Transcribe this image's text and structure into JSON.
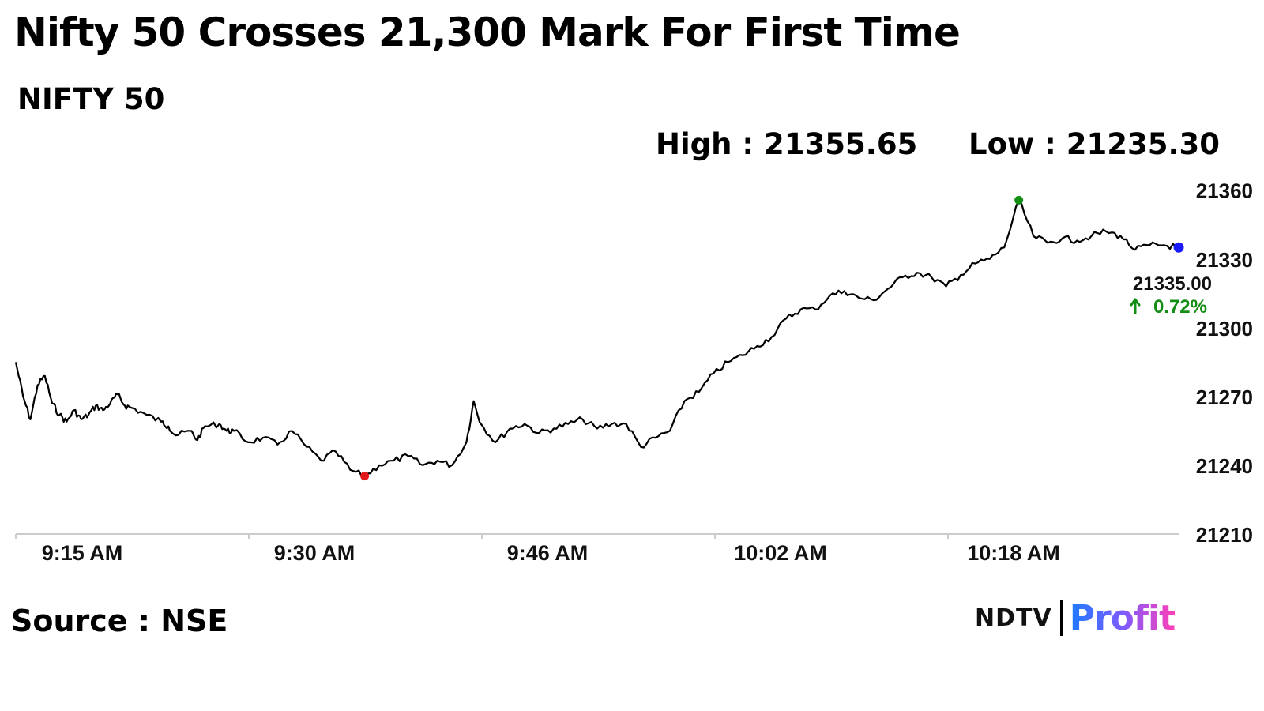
{
  "header": {
    "title": "Nifty 50 Crosses 21,300 Mark For First Time",
    "index_name": "NIFTY 50",
    "high_label": "High : 21355.65",
    "low_label": "Low : 21235.30"
  },
  "footer": {
    "source": "Source : NSE",
    "logo_ndtv": "NDTV",
    "logo_profit": "Profit"
  },
  "colors": {
    "line": "#000000",
    "high_marker": "#138d13",
    "low_marker": "#e0191b",
    "last_marker": "#1a1aff",
    "change_positive": "#138d13",
    "axis": "#cccccc"
  },
  "chart_data": {
    "type": "line",
    "title": "NIFTY 50",
    "xlabel": "",
    "ylabel": "",
    "ylim": [
      21210,
      21363
    ],
    "yticks": [
      21210,
      21240,
      21270,
      21300,
      21330,
      21360
    ],
    "xticks": [
      "9:15 AM",
      "9:30 AM",
      "9:46 AM",
      "10:02 AM",
      "10:18 AM"
    ],
    "x_time_range": [
      "09:15",
      "10:35"
    ],
    "high": {
      "time": "10:24",
      "value": 21355.65
    },
    "low": {
      "time": "09:39",
      "value": 21235.3
    },
    "last": {
      "time": "10:35",
      "value": 21335.0,
      "label": "21335.00",
      "change": "0.72%",
      "direction": "up"
    },
    "grid": false,
    "series": [
      {
        "values": [
          [
            "09:15",
            21285
          ],
          [
            "09:15.5",
            21270
          ],
          [
            "09:16",
            21260
          ],
          [
            "09:16.5",
            21275
          ],
          [
            "09:17",
            21279
          ],
          [
            "09:17.5",
            21267
          ],
          [
            "09:18",
            21262
          ],
          [
            "09:18.5",
            21259
          ],
          [
            "09:19",
            21264
          ],
          [
            "09:19.5",
            21260
          ],
          [
            "09:20",
            21262
          ],
          [
            "09:20.5",
            21266
          ],
          [
            "09:21",
            21264
          ],
          [
            "09:21.5",
            21267
          ],
          [
            "09:22",
            21271
          ],
          [
            "09:22.5",
            21266
          ],
          [
            "09:23",
            21265
          ],
          [
            "09:24",
            21262
          ],
          [
            "09:25",
            21259
          ],
          [
            "09:25.5",
            21257
          ],
          [
            "09:26",
            21253
          ],
          [
            "09:27",
            21255
          ],
          [
            "09:27.5",
            21251
          ],
          [
            "09:28",
            21257
          ],
          [
            "09:29",
            21258
          ],
          [
            "09:29.5",
            21255
          ],
          [
            "09:30",
            21255
          ],
          [
            "09:31",
            21250
          ],
          [
            "09:32",
            21252
          ],
          [
            "09:33",
            21249
          ],
          [
            "09:34",
            21255
          ],
          [
            "09:35",
            21248
          ],
          [
            "09:36",
            21242
          ],
          [
            "09:37",
            21246
          ],
          [
            "09:38",
            21238
          ],
          [
            "09:39",
            21235.3
          ],
          [
            "09:40",
            21240
          ],
          [
            "09:41",
            21242
          ],
          [
            "09:42",
            21244
          ],
          [
            "09:43",
            21240
          ],
          [
            "09:44",
            21242
          ],
          [
            "09:45",
            21240
          ],
          [
            "09:46",
            21250
          ],
          [
            "09:46.5",
            21268
          ],
          [
            "09:47",
            21258
          ],
          [
            "09:48",
            21250
          ],
          [
            "09:49",
            21256
          ],
          [
            "09:50",
            21258
          ],
          [
            "09:51",
            21254
          ],
          [
            "09:52",
            21256
          ],
          [
            "09:53",
            21258
          ],
          [
            "09:54",
            21260
          ],
          [
            "09:55",
            21256
          ],
          [
            "09:56",
            21258
          ],
          [
            "09:57",
            21258
          ],
          [
            "09:58",
            21248
          ],
          [
            "09:59",
            21252
          ],
          [
            "10:00",
            21255
          ],
          [
            "10:01",
            21268
          ],
          [
            "10:02",
            21272
          ],
          [
            "10:03",
            21280
          ],
          [
            "10:04",
            21285
          ],
          [
            "10:05",
            21288
          ],
          [
            "10:06",
            21292
          ],
          [
            "10:07",
            21296
          ],
          [
            "10:08",
            21304
          ],
          [
            "10:09",
            21308
          ],
          [
            "10:10",
            21308
          ],
          [
            "10:11",
            21314
          ],
          [
            "10:12",
            21316
          ],
          [
            "10:13",
            21313
          ],
          [
            "10:14",
            21312
          ],
          [
            "10:15",
            21317
          ],
          [
            "10:16",
            21322
          ],
          [
            "10:17",
            21324
          ],
          [
            "10:18",
            21322
          ],
          [
            "10:19",
            21318
          ],
          [
            "10:20",
            21323
          ],
          [
            "10:21",
            21328
          ],
          [
            "10:22",
            21330
          ],
          [
            "10:23",
            21335
          ],
          [
            "10:24",
            21355.65
          ],
          [
            "10:25",
            21340
          ],
          [
            "10:26",
            21337
          ],
          [
            "10:27",
            21339
          ],
          [
            "10:28",
            21338
          ],
          [
            "10:29",
            21340
          ],
          [
            "10:30",
            21342
          ],
          [
            "10:31",
            21340
          ],
          [
            "10:32",
            21334
          ],
          [
            "10:33",
            21336
          ],
          [
            "10:34",
            21336
          ],
          [
            "10:35",
            21335
          ]
        ]
      }
    ]
  }
}
